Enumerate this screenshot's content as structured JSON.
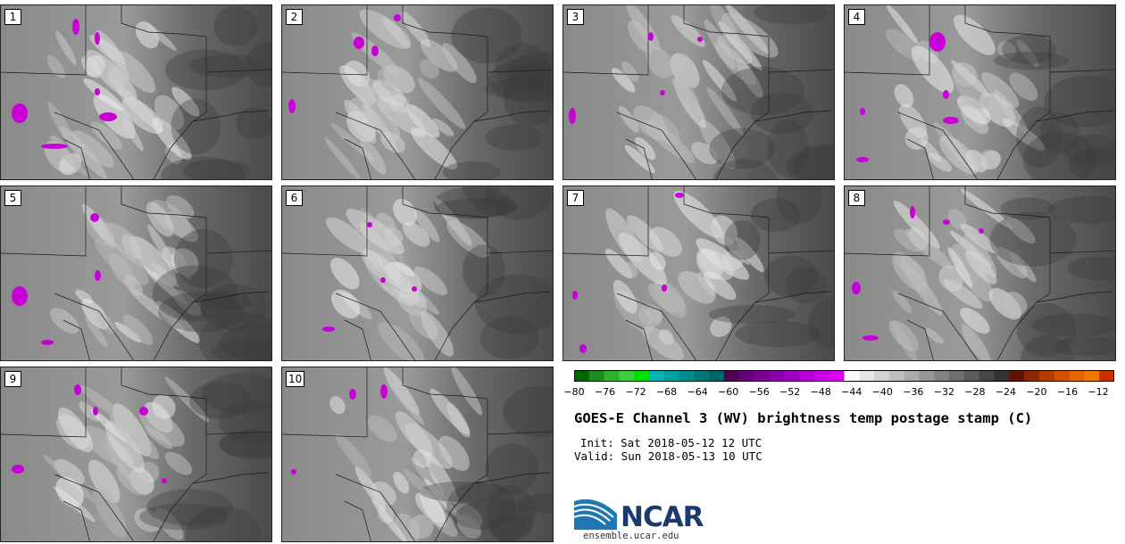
{
  "panels": [
    {
      "label": "1"
    },
    {
      "label": "2"
    },
    {
      "label": "3"
    },
    {
      "label": "4"
    },
    {
      "label": "5"
    },
    {
      "label": "6"
    },
    {
      "label": "7"
    },
    {
      "label": "8"
    },
    {
      "label": "9"
    },
    {
      "label": "10"
    }
  ],
  "colorbar": {
    "tick_labels": [
      "−80",
      "−76",
      "−72",
      "−68",
      "−64",
      "−60",
      "−56",
      "−52",
      "−48",
      "−44",
      "−40",
      "−36",
      "−32",
      "−28",
      "−24",
      "−20",
      "−16",
      "−12"
    ],
    "colors": [
      "#006400",
      "#1c8c1c",
      "#2eb02e",
      "#3ccc3c",
      "#00e000",
      "#00b4b4",
      "#00a0a0",
      "#008c8c",
      "#007878",
      "#006464",
      "#4b0050",
      "#640078",
      "#7a0094",
      "#8c00ac",
      "#a000c0",
      "#b400d4",
      "#c800e6",
      "#dc00f0",
      "#ffffff",
      "#e6e6e6",
      "#d2d2d2",
      "#bebebe",
      "#aaaaaa",
      "#969696",
      "#828282",
      "#6e6e6e",
      "#5a5a5a",
      "#464646",
      "#323232",
      "#5a1400",
      "#8c2800",
      "#b43c00",
      "#d25000",
      "#e66400",
      "#f07800",
      "#c83200"
    ]
  },
  "title": "GOES-E Channel 3 (WV) brightness temp postage stamp (C)",
  "init": "Init: Sat 2018-05-12 12 UTC",
  "valid": "Valid: Sun 2018-05-13 10 UTC",
  "logo_text": "NCAR",
  "site": "ensemble.ucar.edu"
}
